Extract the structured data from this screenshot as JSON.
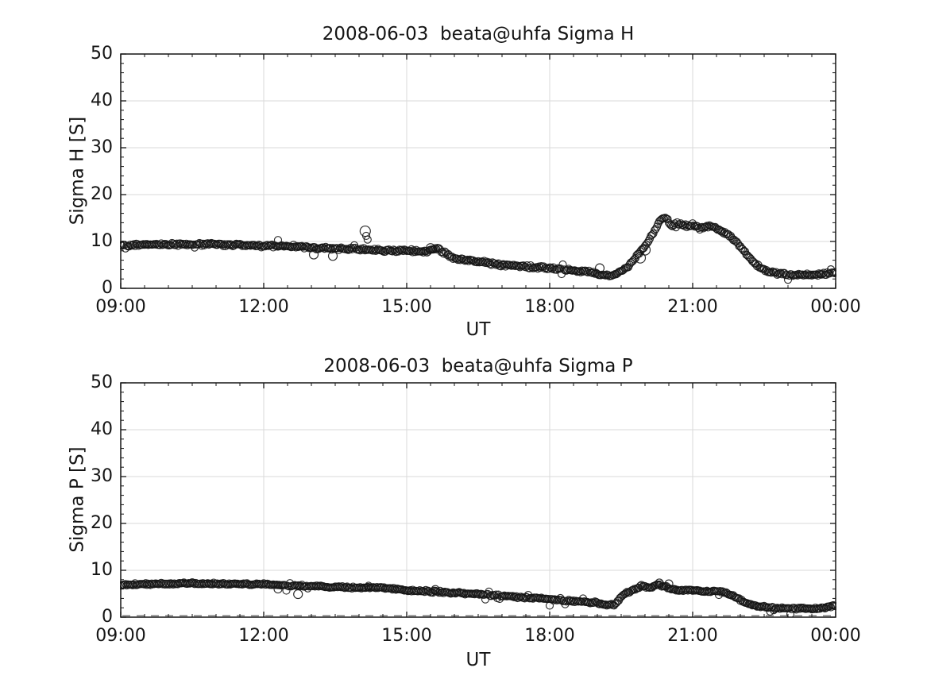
{
  "figure": {
    "background": "#ffffff"
  },
  "style": {
    "font_color": "#151515",
    "axis_color": "#151515",
    "grid_color": "#dadada",
    "marker_color": "#151515",
    "zero_line_color": "#8a8a8a"
  },
  "axes_shared": {
    "x_tick_labels": [
      "09:00",
      "12:00",
      "15:00",
      "18:00",
      "21:00",
      "00:00"
    ],
    "x_tick_hours": [
      9,
      12,
      15,
      18,
      21,
      24
    ],
    "y_tick_labels": [
      "0",
      "10",
      "20",
      "30",
      "40",
      "50"
    ],
    "y_tick_values": [
      0,
      10,
      20,
      30,
      40,
      50
    ],
    "x_minor_step_hours": 0.5,
    "y_minor_step": 2
  },
  "chart_data": [
    {
      "type": "scatter",
      "title": "2008-06-03  beata@uhfa Sigma H",
      "xlabel": "UT",
      "ylabel": "Sigma H [S]",
      "xlim_hours": [
        9,
        24
      ],
      "ylim": [
        0,
        50
      ],
      "grid": true,
      "legend": null,
      "marker": "open-circle",
      "marker_radius_px": 4.5,
      "sample_step_hours": 0.025,
      "noise_amplitude": 0.38,
      "seed": 42,
      "zero_dashed_line": false,
      "keypoints": [
        [
          9.0,
          9.2
        ],
        [
          9.4,
          9.3
        ],
        [
          10.0,
          9.4
        ],
        [
          10.7,
          9.4
        ],
        [
          11.5,
          9.3
        ],
        [
          12.0,
          9.1
        ],
        [
          12.5,
          8.9
        ],
        [
          13.0,
          8.7
        ],
        [
          13.5,
          8.5
        ],
        [
          14.0,
          8.3
        ],
        [
          14.4,
          8.1
        ],
        [
          15.0,
          8.0
        ],
        [
          15.4,
          7.9
        ],
        [
          15.65,
          8.4
        ],
        [
          15.9,
          6.9
        ],
        [
          16.0,
          6.4
        ],
        [
          16.5,
          5.7
        ],
        [
          17.0,
          5.0
        ],
        [
          17.5,
          4.6
        ],
        [
          18.0,
          4.3
        ],
        [
          18.5,
          3.8
        ],
        [
          19.0,
          3.2
        ],
        [
          19.25,
          2.6
        ],
        [
          19.4,
          3.0
        ],
        [
          19.55,
          4.0
        ],
        [
          19.7,
          5.2
        ],
        [
          19.85,
          7.3
        ],
        [
          20.0,
          9.0
        ],
        [
          20.15,
          11.5
        ],
        [
          20.3,
          14.2
        ],
        [
          20.42,
          15.3
        ],
        [
          20.55,
          13.4
        ],
        [
          20.7,
          13.9
        ],
        [
          20.85,
          13.3
        ],
        [
          21.0,
          13.6
        ],
        [
          21.15,
          12.9
        ],
        [
          21.3,
          13.2
        ],
        [
          21.5,
          12.9
        ],
        [
          21.7,
          11.8
        ],
        [
          21.9,
          10.2
        ],
        [
          22.1,
          7.6
        ],
        [
          22.3,
          5.2
        ],
        [
          22.5,
          3.9
        ],
        [
          22.7,
          3.3
        ],
        [
          23.0,
          3.0
        ],
        [
          23.3,
          2.9
        ],
        [
          23.6,
          2.9
        ],
        [
          24.0,
          3.4
        ]
      ],
      "outliers": [
        [
          12.3,
          10.3,
          4.5
        ],
        [
          13.05,
          7.2,
          5.5
        ],
        [
          13.45,
          6.9,
          5.5
        ],
        [
          14.13,
          12.2,
          6.5
        ],
        [
          14.15,
          11.2,
          4.5
        ],
        [
          14.18,
          10.4,
          4.5
        ],
        [
          15.5,
          8.6,
          5.5
        ],
        [
          15.55,
          8.3,
          4.5
        ],
        [
          19.05,
          4.3,
          5.5
        ],
        [
          19.9,
          6.5,
          6.5
        ],
        [
          20.0,
          8.2,
          6.5
        ]
      ]
    },
    {
      "type": "scatter",
      "title": "2008-06-03  beata@uhfa Sigma P",
      "xlabel": "UT",
      "ylabel": "Sigma P [S]",
      "xlim_hours": [
        9,
        24
      ],
      "ylim": [
        0,
        50
      ],
      "grid": true,
      "legend": null,
      "marker": "open-circle",
      "marker_radius_px": 4.5,
      "sample_step_hours": 0.025,
      "noise_amplitude": 0.28,
      "seed": 1337,
      "zero_dashed_line": true,
      "zero_line_value": 0.3,
      "keypoints": [
        [
          9.0,
          6.9
        ],
        [
          9.6,
          7.1
        ],
        [
          10.5,
          7.2
        ],
        [
          11.5,
          7.1
        ],
        [
          12.0,
          7.0
        ],
        [
          12.7,
          6.7
        ],
        [
          13.5,
          6.4
        ],
        [
          14.1,
          6.2
        ],
        [
          14.35,
          6.4
        ],
        [
          15.0,
          5.8
        ],
        [
          15.8,
          5.3
        ],
        [
          16.5,
          4.9
        ],
        [
          17.2,
          4.4
        ],
        [
          18.0,
          3.9
        ],
        [
          18.5,
          3.4
        ],
        [
          19.0,
          3.1
        ],
        [
          19.2,
          2.5
        ],
        [
          19.35,
          2.7
        ],
        [
          19.55,
          4.8
        ],
        [
          19.75,
          5.8
        ],
        [
          19.95,
          6.8
        ],
        [
          20.1,
          6.3
        ],
        [
          20.25,
          7.0
        ],
        [
          20.4,
          6.6
        ],
        [
          20.55,
          6.0
        ],
        [
          20.7,
          5.8
        ],
        [
          21.0,
          5.8
        ],
        [
          21.2,
          5.6
        ],
        [
          21.45,
          5.6
        ],
        [
          21.65,
          5.3
        ],
        [
          21.85,
          4.6
        ],
        [
          22.05,
          3.4
        ],
        [
          22.3,
          2.4
        ],
        [
          22.6,
          2.0
        ],
        [
          23.0,
          1.9
        ],
        [
          23.4,
          1.8
        ],
        [
          23.7,
          1.9
        ],
        [
          24.0,
          2.5
        ]
      ],
      "outliers": [
        [
          12.3,
          6.0,
          5.0
        ],
        [
          12.72,
          4.9,
          5.5
        ],
        [
          14.2,
          6.7,
          4.5
        ],
        [
          15.6,
          5.9,
          5.0
        ],
        [
          20.3,
          7.3,
          5.0
        ],
        [
          20.5,
          7.1,
          5.0
        ]
      ]
    }
  ]
}
